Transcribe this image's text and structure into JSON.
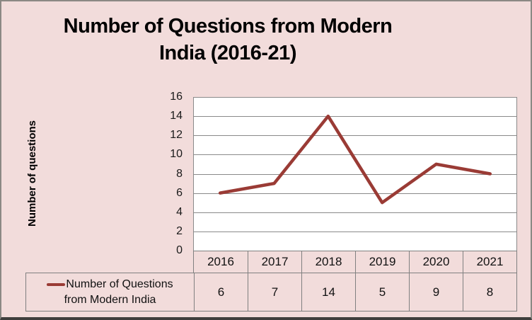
{
  "title": {
    "line1": "Number of Questions from Modern",
    "line2": "India (2016-21)"
  },
  "y_axis_title": "Number of questions",
  "legend": {
    "line1": "Number of Questions",
    "line2": "from Modern India"
  },
  "colors": {
    "background": "#F2DCDB",
    "plot_background": "#FFFFFF",
    "gridline": "#8A8A8A",
    "table_border": "#808080",
    "series_line": "#9A3B35",
    "outer_border": "#8B8884"
  },
  "chart_data": {
    "type": "line",
    "title": "Number of Questions from Modern India (2016-21)",
    "xlabel": "",
    "ylabel": "Number of questions",
    "categories": [
      "2016",
      "2017",
      "2018",
      "2019",
      "2020",
      "2021"
    ],
    "series": [
      {
        "name": "Number of Questions from Modern India",
        "values": [
          6,
          7,
          14,
          5,
          9,
          8
        ],
        "color": "#9A3B35"
      }
    ],
    "ylim": [
      0,
      16
    ],
    "yticks": [
      16,
      14,
      12,
      10,
      8,
      6,
      4,
      2,
      0
    ],
    "grid": true,
    "legend_position": "bottom",
    "data_table_shown": true
  }
}
